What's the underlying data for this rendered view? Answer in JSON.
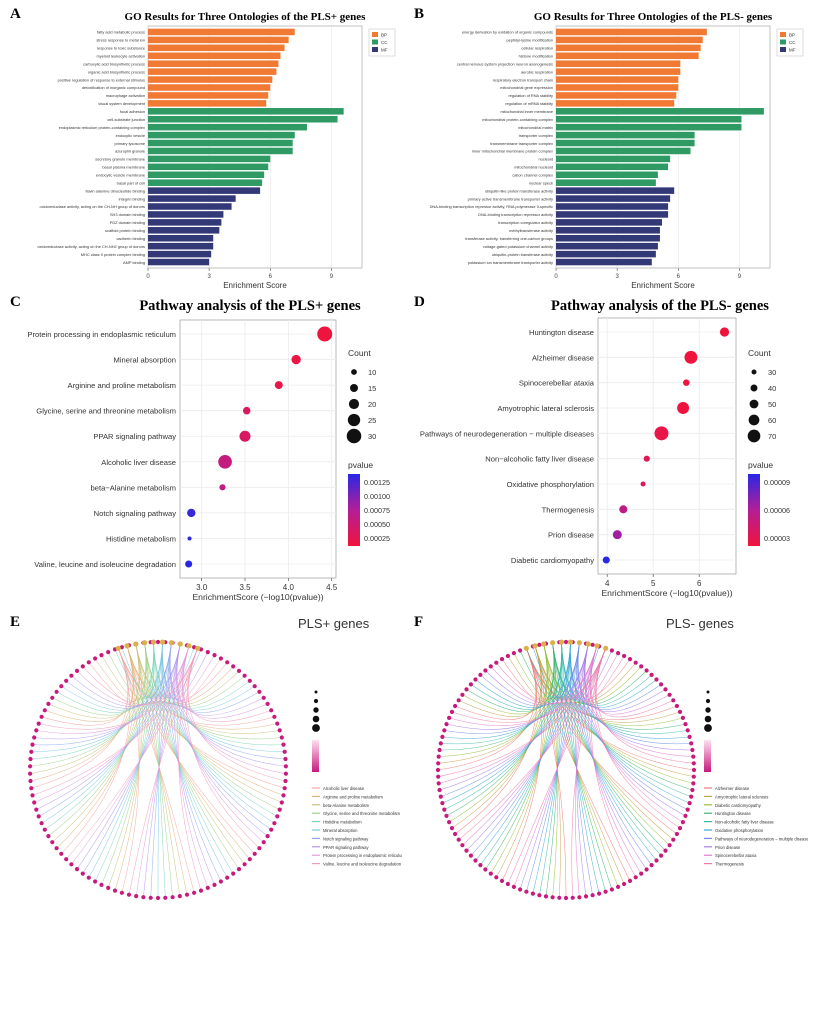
{
  "panels": {
    "A": {
      "label": "A",
      "title": "GO Results for Three Ontologies of the PLS+ genes",
      "xlabel": "Enrichment Score",
      "ticks": [
        "0",
        "3",
        "6",
        "9"
      ],
      "legend": [
        "BP",
        "CC",
        "MF"
      ],
      "colors": {
        "BP": "#f07a34",
        "CC": "#2f9a63",
        "MF": "#333876"
      }
    },
    "B": {
      "label": "B",
      "title": "GO Results for Three Ontologies of the PLS- genes",
      "xlabel": "Enrichment Score",
      "ticks": [
        "0",
        "3",
        "6",
        "9"
      ],
      "legend": [
        "BP",
        "CC",
        "MF"
      ]
    },
    "C": {
      "label": "C",
      "title": "Pathway analysis of the PLS+ genes",
      "xlabel": "EnrichmentScore (−log10(pvalue))",
      "xticks": [
        "3.0",
        "3.5",
        "4.0",
        "4.5"
      ],
      "size_legend_title": "Count",
      "size_legend": [
        "10",
        "15",
        "20",
        "25",
        "30"
      ],
      "color_legend_title": "pvalue",
      "color_legend": [
        "0.00125",
        "0.00100",
        "0.00075",
        "0.00050",
        "0.00025"
      ]
    },
    "D": {
      "label": "D",
      "title": "Pathway analysis of the PLS- genes",
      "xlabel": "EnrichmentScore (−log10(pvalue))",
      "xticks": [
        "4",
        "5",
        "6"
      ],
      "size_legend_title": "Count",
      "size_legend": [
        "30",
        "40",
        "50",
        "60",
        "70"
      ],
      "color_legend_title": "pvalue",
      "color_legend": [
        "0.00009",
        "0.00006",
        "0.00003"
      ]
    },
    "E": {
      "label": "E",
      "title": "PLS+ genes",
      "legend_items": [
        "Alcoholic liver disease",
        "Arginine and proline metabolism",
        "beta-Alanine metabolism",
        "Glycine, serine and threonine metabolism",
        "Histidine metabolism",
        "Mineral absorption",
        "Notch signaling pathway",
        "PPAR signaling pathway",
        "Protein processing in endoplasmic reticulum",
        "Valine, leucine and isoleucine degradation"
      ]
    },
    "F": {
      "label": "F",
      "title": "PLS- genes",
      "legend_items": [
        "Alzheimer disease",
        "Amyotrophic lateral sclerosis",
        "Diabetic cardiomyopathy",
        "Huntington disease",
        "Non-alcoholic fatty liver disease",
        "Oxidative phosphorylation",
        "Pathways of neurodegeneration – multiple diseases",
        "Prion disease",
        "Spinocerebellar ataxia",
        "Thermogenesis"
      ]
    }
  },
  "chart_data": [
    {
      "panel": "A",
      "type": "bar",
      "orientation": "horizontal",
      "title": "GO Results for Three Ontologies of the PLS+ genes",
      "xlabel": "Enrichment Score",
      "xlim": [
        0,
        10.5
      ],
      "categories": [
        "fatty acid metabolic process",
        "stress response to metal ion",
        "response to toxic substance",
        "myeloid leukocyte activation",
        "carboxylic acid biosynthetic process",
        "organic acid biosynthetic process",
        "positive regulation of response to external stimulus",
        "detoxification of inorganic compound",
        "macrophage activation",
        "visual system development",
        "focal adhesion",
        "cell-substrate junction",
        "endoplasmic reticulum protein-containing complex",
        "endocytic vesicle",
        "primary lysosome",
        "azurophil granule",
        "secretory granule membrane",
        "basal plasma membrane",
        "endocytic vesicle membrane",
        "basal part of cell",
        "flavin adenine dinucleotide binding",
        "integrin binding",
        "oxidoreductase activity, acting on the CH-NH group of donors",
        "SH3 domain binding",
        "PDZ domain binding",
        "scaffold protein binding",
        "cadherin binding",
        "oxidoreductase activity, acting on the CH-NH2 group of donors",
        "MHC class II protein complex binding",
        "AMP binding"
      ],
      "groups": [
        "BP",
        "BP",
        "BP",
        "BP",
        "BP",
        "BP",
        "BP",
        "BP",
        "BP",
        "BP",
        "CC",
        "CC",
        "CC",
        "CC",
        "CC",
        "CC",
        "CC",
        "CC",
        "CC",
        "CC",
        "MF",
        "MF",
        "MF",
        "MF",
        "MF",
        "MF",
        "MF",
        "MF",
        "MF",
        "MF"
      ],
      "values": [
        7.2,
        6.9,
        6.7,
        6.5,
        6.4,
        6.3,
        6.1,
        6.0,
        5.9,
        5.8,
        9.6,
        9.3,
        7.8,
        7.2,
        7.1,
        7.1,
        6.0,
        5.9,
        5.7,
        5.6,
        5.5,
        4.3,
        4.1,
        3.7,
        3.6,
        3.5,
        3.2,
        3.2,
        3.1,
        3.0
      ]
    },
    {
      "panel": "B",
      "type": "bar",
      "orientation": "horizontal",
      "title": "GO Results for Three Ontologies of the PLS- genes",
      "xlabel": "Enrichment Score",
      "xlim": [
        0,
        10.5
      ],
      "categories": [
        "energy derivation by oxidation of organic compounds",
        "peptidyl-lysine modification",
        "cellular respiration",
        "histone modification",
        "central nervous system projection neuron axonogenesis",
        "aerobic respiration",
        "respiratory electron transport chain",
        "mitochondrial gene expression",
        "regulation of RNA stability",
        "regulation of mRNA stability",
        "mitochondrial inner membrane",
        "mitochondrial protein-containing complex",
        "mitochondrial matrix",
        "transporter complex",
        "transmembrane transporter complex",
        "inner mitochondrial membrane protein complex",
        "nucleoid",
        "mitochondrial nucleoid",
        "cation channel complex",
        "nuclear speck",
        "ubiquitin-like protein transferase activity",
        "primary active transmembrane transporter activity",
        "DNA-binding transcription repressor activity, RNA polymerase II-specific",
        "DNA-binding transcription repressor activity",
        "transcription coregulator activity",
        "methyltransferase activity",
        "transferase activity, transferring one-carbon groups",
        "voltage-gated potassium channel activity",
        "ubiquitin-protein transferase activity",
        "potassium ion transmembrane transporter activity"
      ],
      "groups": [
        "BP",
        "BP",
        "BP",
        "BP",
        "BP",
        "BP",
        "BP",
        "BP",
        "BP",
        "BP",
        "CC",
        "CC",
        "CC",
        "CC",
        "CC",
        "CC",
        "CC",
        "CC",
        "CC",
        "CC",
        "MF",
        "MF",
        "MF",
        "MF",
        "MF",
        "MF",
        "MF",
        "MF",
        "MF",
        "MF"
      ],
      "values": [
        7.4,
        7.2,
        7.1,
        7.0,
        6.1,
        6.1,
        6.0,
        6.0,
        5.9,
        5.8,
        10.2,
        9.1,
        9.1,
        6.8,
        6.8,
        6.6,
        5.6,
        5.5,
        5.0,
        4.9,
        5.8,
        5.6,
        5.5,
        5.5,
        5.2,
        5.1,
        5.1,
        5.0,
        4.9,
        4.7
      ]
    },
    {
      "panel": "C",
      "type": "scatter",
      "title": "Pathway analysis of the PLS+ genes",
      "xlabel": "EnrichmentScore (−log10(pvalue))",
      "xlim": [
        2.75,
        4.55
      ],
      "categories": [
        "Protein processing in endoplasmic reticulum",
        "Mineral absorption",
        "Arginine and proline metabolism",
        "Glycine, serine and threonine metabolism",
        "PPAR signaling pathway",
        "Alcoholic liver disease",
        "beta−Alanine metabolism",
        "Notch signaling pathway",
        "Histidine metabolism",
        "Valine, leucine and isoleucine degradation"
      ],
      "x": [
        4.42,
        4.09,
        3.89,
        3.52,
        3.5,
        3.27,
        3.24,
        2.88,
        2.86,
        2.85
      ],
      "count": [
        31,
        18,
        15,
        14,
        22,
        28,
        11,
        16,
        6,
        13
      ],
      "pvalue": [
        4e-05,
        8e-05,
        0.00013,
        0.0003,
        0.00032,
        0.00054,
        0.00058,
        0.00132,
        0.00138,
        0.00141
      ]
    },
    {
      "panel": "D",
      "type": "scatter",
      "title": "Pathway analysis of the PLS- genes",
      "xlabel": "EnrichmentScore (−log10(pvalue))",
      "xlim": [
        3.8,
        6.8
      ],
      "categories": [
        "Huntington disease",
        "Alzheimer disease",
        "Spinocerebellar ataxia",
        "Amyotrophic lateral sclerosis",
        "Pathways of neurodegeneration − multiple diseases",
        "Non−alcoholic fatty liver disease",
        "Oxidative phosphorylation",
        "Thermogenesis",
        "Prion disease",
        "Diabetic cardiomyopathy"
      ],
      "x": [
        6.55,
        5.82,
        5.72,
        5.65,
        5.18,
        4.86,
        4.78,
        4.35,
        4.22,
        3.98
      ],
      "count": [
        52,
        71,
        38,
        66,
        77,
        36,
        30,
        46,
        51,
        41
      ],
      "pvalue": [
        3e-07,
        1.5e-06,
        1.9e-06,
        2.2e-06,
        6.6e-06,
        1.38e-05,
        1.66e-05,
        4.47e-05,
        6.03e-05,
        0.000105
      ]
    }
  ]
}
